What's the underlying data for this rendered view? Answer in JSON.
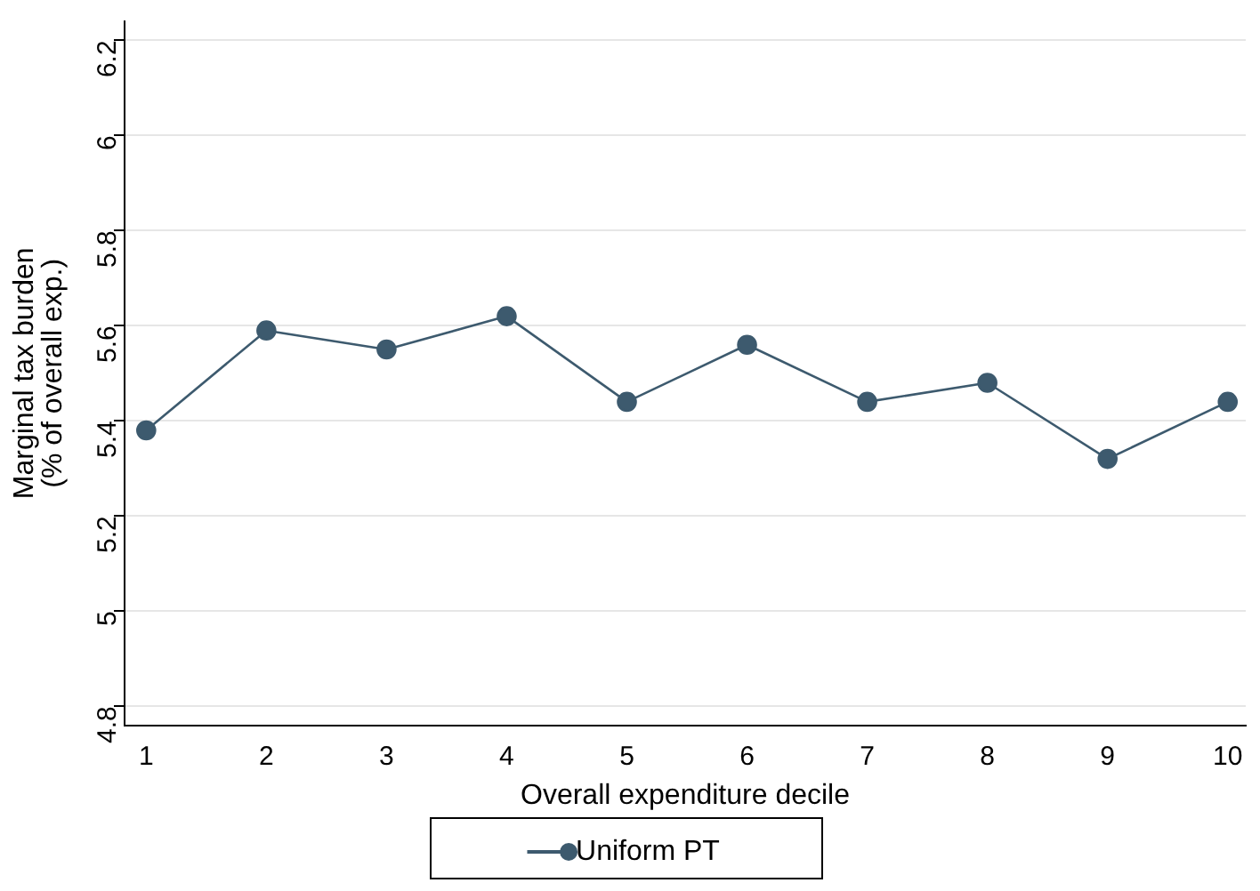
{
  "chart_data": {
    "type": "line",
    "xlabel": "Overall expenditure decile",
    "ylabel": "Marginal tax burden\n(% of overall exp.)",
    "x": [
      1,
      2,
      3,
      4,
      5,
      6,
      7,
      8,
      9,
      10
    ],
    "series": [
      {
        "name": "Uniform PT",
        "color": "#3d5a6e",
        "values": [
          5.38,
          5.59,
          5.55,
          5.62,
          5.44,
          5.56,
          5.44,
          5.48,
          5.32,
          5.44
        ]
      }
    ],
    "xlim": [
      0.82,
      10.15
    ],
    "xticks": [
      1,
      2,
      3,
      4,
      5,
      6,
      7,
      8,
      9,
      10
    ],
    "ylim": [
      4.76,
      6.24
    ],
    "yticks": [
      4.8,
      5,
      5.2,
      5.4,
      5.6,
      5.8,
      6,
      6.2
    ],
    "grid": "y",
    "legend": "bottom",
    "marker": "circle",
    "line_style": "solid"
  }
}
